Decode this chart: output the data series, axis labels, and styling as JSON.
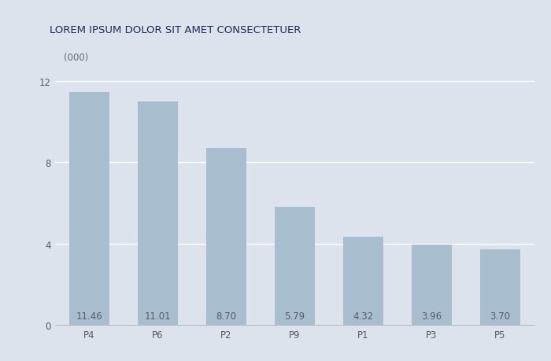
{
  "categories": [
    "P4",
    "P6",
    "P2",
    "P9",
    "P1",
    "P3",
    "P5"
  ],
  "values": [
    11.46,
    11.01,
    8.7,
    5.79,
    4.32,
    3.96,
    3.7
  ],
  "bar_color": "#a8bece",
  "background_color": "#dce3ec",
  "title": "LOREM IPSUM DOLOR SIT AMET CONSECTETUER",
  "title_color": "#1a2e5a",
  "ylabel_text": "(000)",
  "yticks": [
    0,
    4,
    8,
    12
  ],
  "ylim": [
    0,
    13
  ],
  "bar_label_color": "#555c66",
  "bar_label_fontsize": 8.5,
  "title_fontsize": 9.5,
  "axis_tick_fontsize": 8.5,
  "grid_color": "#ffffff",
  "spine_color": "#b0b8c5"
}
